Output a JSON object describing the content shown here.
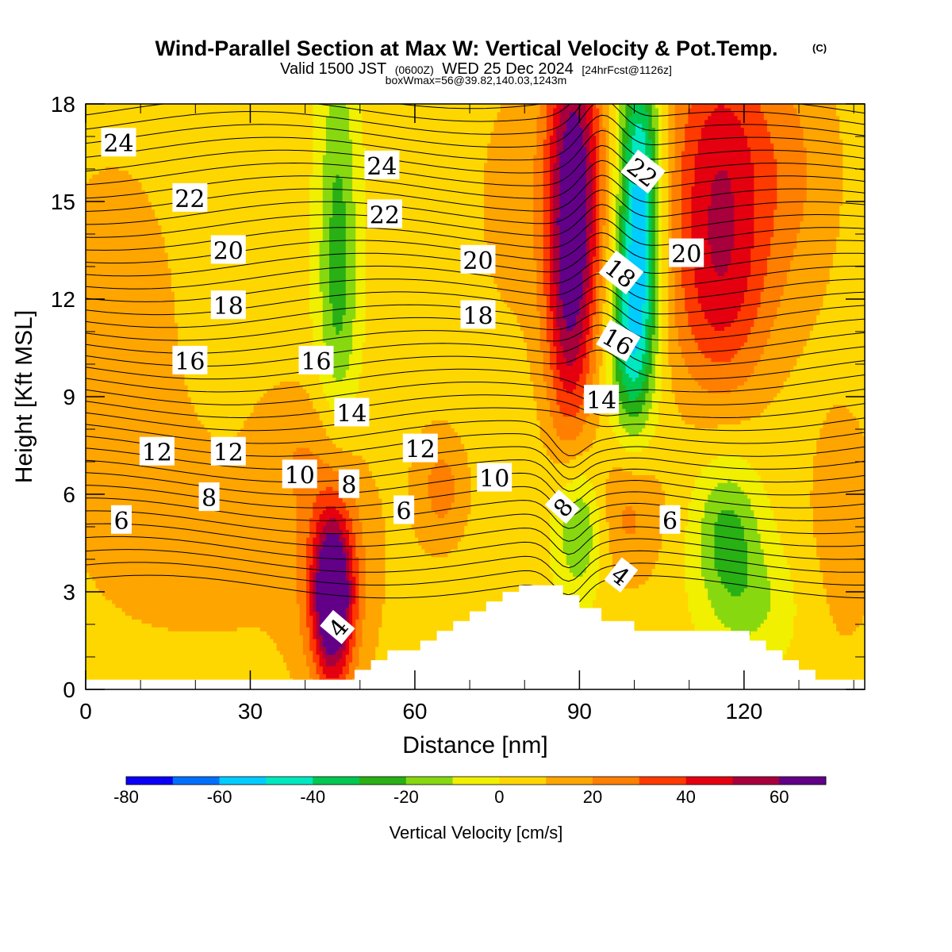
{
  "header": {
    "title": "Wind-Parallel Section at Max W: Vertical Velocity & Pot.Temp.",
    "copyright_mark": "(C)",
    "valid_prefix": "Valid 1500 JST",
    "valid_utc": "(0600Z)",
    "valid_date": "WED 25 Dec 2024",
    "forecast_info": "[24hrFcst@1126z]",
    "box_info": "boxWmax=56@39.82,140.03,1243m"
  },
  "chart_data": {
    "type": "heatmap",
    "xlabel": "Distance [nm]",
    "ylabel": "Height [Kft MSL]",
    "xlim": [
      0,
      142
    ],
    "ylim": [
      0,
      18
    ],
    "x_ticks": [
      0,
      30,
      60,
      90,
      120
    ],
    "x_tick_labels": [
      "0",
      "30",
      "60",
      "90",
      "120"
    ],
    "y_ticks": [
      0,
      3,
      6,
      9,
      12,
      15,
      18
    ],
    "y_tick_labels": [
      "0",
      "3",
      "6",
      "9",
      "12",
      "15",
      "18"
    ],
    "terrain": {
      "x": [
        0,
        49,
        49,
        52,
        52,
        55,
        55,
        61,
        61,
        64,
        64,
        67,
        67,
        70,
        70,
        73,
        73,
        76,
        76,
        79,
        79,
        87,
        87,
        90,
        90,
        94,
        94,
        100,
        100,
        121,
        121,
        124,
        124,
        127,
        127,
        130,
        130,
        133,
        133,
        142
      ],
      "y": [
        0.3,
        0.3,
        0.6,
        0.6,
        0.9,
        0.9,
        1.2,
        1.2,
        1.5,
        1.5,
        1.8,
        1.8,
        2.1,
        2.1,
        2.4,
        2.4,
        2.7,
        2.7,
        3.0,
        3.0,
        3.2,
        3.2,
        2.9,
        2.9,
        2.5,
        2.5,
        2.1,
        2.1,
        1.8,
        1.8,
        1.5,
        1.5,
        1.2,
        1.2,
        0.9,
        0.9,
        0.6,
        0.6,
        0.3,
        0.3
      ]
    },
    "colorbar": {
      "title": "Vertical Velocity [cm/s]",
      "bounds": [
        -80,
        -70,
        -60,
        -50,
        -40,
        -30,
        -20,
        -10,
        0,
        10,
        20,
        30,
        40,
        50,
        60,
        70
      ],
      "colors": [
        "#0b00f5",
        "#0070ff",
        "#00ccff",
        "#00e8c0",
        "#00c850",
        "#28b014",
        "#88d810",
        "#f0f000",
        "#ffd700",
        "#ffa500",
        "#ff7f00",
        "#ff3a00",
        "#e50010",
        "#a8003c",
        "#620088"
      ],
      "tick_values": [
        -80,
        -60,
        -40,
        -20,
        0,
        20,
        40,
        60
      ],
      "tick_labels": [
        "-80",
        "-60",
        "-40",
        "-20",
        "0",
        "20",
        "40",
        "60"
      ]
    },
    "vertical_velocity_features": [
      {
        "kind": "updraft",
        "x": 45,
        "y": 2.8,
        "peak": 65
      },
      {
        "kind": "updraft",
        "x": 89,
        "y": 15.5,
        "peak": 65
      },
      {
        "kind": "updraft",
        "x": 115,
        "y": 15,
        "peak": 40
      },
      {
        "kind": "updraft",
        "x": 99,
        "y": 5.5,
        "peak": 20
      },
      {
        "kind": "updraft",
        "x": 65,
        "y": 6,
        "peak": 20
      },
      {
        "kind": "downdraft",
        "x": 101,
        "y": 14.5,
        "peak": -62
      },
      {
        "kind": "downdraft",
        "x": 46,
        "y": 15,
        "peak": -22
      },
      {
        "kind": "downdraft",
        "x": 90,
        "y": 5,
        "peak": -25
      },
      {
        "kind": "downdraft",
        "x": 117,
        "y": 4.8,
        "peak": -25
      },
      {
        "kind": "updraft",
        "x": 5,
        "y": 12,
        "peak": 8
      }
    ],
    "potential_temperature_contour_labels": [
      {
        "value": "24",
        "x": 6,
        "y": 16.8,
        "rotate": 0
      },
      {
        "value": "22",
        "x": 19,
        "y": 15.1,
        "rotate": 0
      },
      {
        "value": "20",
        "x": 26,
        "y": 13.5,
        "rotate": 0
      },
      {
        "value": "18",
        "x": 26,
        "y": 11.8,
        "rotate": 0
      },
      {
        "value": "16",
        "x": 19,
        "y": 10.1,
        "rotate": 0
      },
      {
        "value": "12",
        "x": 13,
        "y": 7.3,
        "rotate": 0
      },
      {
        "value": "12",
        "x": 26,
        "y": 7.3,
        "rotate": 0
      },
      {
        "value": "10",
        "x": 39,
        "y": 6.6,
        "rotate": 0
      },
      {
        "value": "8",
        "x": 22.5,
        "y": 5.9,
        "rotate": 0
      },
      {
        "value": "6",
        "x": 6.5,
        "y": 5.2,
        "rotate": 0
      },
      {
        "value": "24",
        "x": 54,
        "y": 16.1,
        "rotate": 0
      },
      {
        "value": "22",
        "x": 54.5,
        "y": 14.6,
        "rotate": 0
      },
      {
        "value": "16",
        "x": 42,
        "y": 10.1,
        "rotate": 0
      },
      {
        "value": "14",
        "x": 48.5,
        "y": 8.5,
        "rotate": 0
      },
      {
        "value": "8",
        "x": 48,
        "y": 6.3,
        "rotate": 0
      },
      {
        "value": "6",
        "x": 58,
        "y": 5.5,
        "rotate": 0
      },
      {
        "value": "20",
        "x": 71.5,
        "y": 13.2,
        "rotate": 0
      },
      {
        "value": "18",
        "x": 71.5,
        "y": 11.5,
        "rotate": 0
      },
      {
        "value": "12",
        "x": 61,
        "y": 7.4,
        "rotate": 0
      },
      {
        "value": "10",
        "x": 74.5,
        "y": 6.5,
        "rotate": 0
      },
      {
        "value": "22",
        "x": 101.5,
        "y": 15.9,
        "rotate": 38
      },
      {
        "value": "18",
        "x": 97.5,
        "y": 12.8,
        "rotate": 38
      },
      {
        "value": "16",
        "x": 97,
        "y": 10.7,
        "rotate": 30
      },
      {
        "value": "14",
        "x": 94,
        "y": 8.9,
        "rotate": 0
      },
      {
        "value": "20",
        "x": 109.5,
        "y": 13.4,
        "rotate": 0
      },
      {
        "value": "8",
        "x": 87,
        "y": 5.6,
        "rotate": -48
      },
      {
        "value": "6",
        "x": 106.5,
        "y": 5.2,
        "rotate": 0
      },
      {
        "value": "4",
        "x": 97.5,
        "y": 3.5,
        "rotate": 38
      },
      {
        "value": "4",
        "x": 46,
        "y": 1.9,
        "rotate": -50
      }
    ]
  }
}
